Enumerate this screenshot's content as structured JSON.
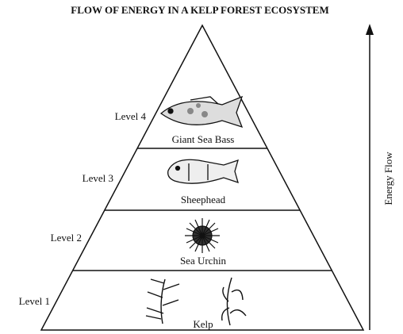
{
  "header": {
    "title": "FLOW OF ENERGY IN A KELP FOREST ECOSYSTEM"
  },
  "levels": [
    {
      "level": "Level 4",
      "organism": "Giant Sea Bass"
    },
    {
      "level": "Level 3",
      "organism": "Sheephead"
    },
    {
      "level": "Level 2",
      "organism": "Sea Urchin"
    },
    {
      "level": "Level 1",
      "organism": "Kelp"
    }
  ],
  "arrow": {
    "label": "Energy Flow"
  }
}
